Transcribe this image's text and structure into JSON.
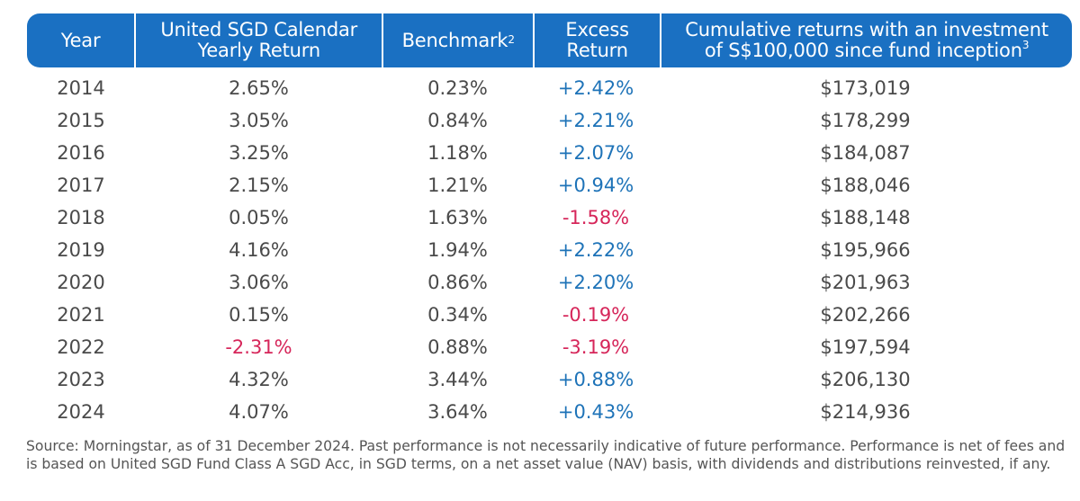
{
  "table": {
    "headers": {
      "year": "Year",
      "yearly_return_line1": "United SGD Calendar",
      "yearly_return_line2": "Yearly Return",
      "benchmark": "Benchmark",
      "benchmark_sup": "2",
      "excess_line1": "Excess",
      "excess_line2": "Return",
      "cumulative_line1": "Cumulative returns with an investment",
      "cumulative_line2": "of S$100,000 since fund inception",
      "cumulative_sup": "3"
    },
    "rows": [
      {
        "year": "2014",
        "fund_return": "2.65%",
        "benchmark": "0.23%",
        "excess": "+2.42%",
        "cumulative": "$173,019"
      },
      {
        "year": "2015",
        "fund_return": "3.05%",
        "benchmark": "0.84%",
        "excess": "+2.21%",
        "cumulative": "$178,299"
      },
      {
        "year": "2016",
        "fund_return": "3.25%",
        "benchmark": "1.18%",
        "excess": "+2.07%",
        "cumulative": "$184,087"
      },
      {
        "year": "2017",
        "fund_return": "2.15%",
        "benchmark": "1.21%",
        "excess": "+0.94%",
        "cumulative": "$188,046"
      },
      {
        "year": "2018",
        "fund_return": "0.05%",
        "benchmark": "1.63%",
        "excess": "-1.58%",
        "cumulative": "$188,148"
      },
      {
        "year": "2019",
        "fund_return": "4.16%",
        "benchmark": "1.94%",
        "excess": "+2.22%",
        "cumulative": "$195,966"
      },
      {
        "year": "2020",
        "fund_return": "3.06%",
        "benchmark": "0.86%",
        "excess": "+2.20%",
        "cumulative": "$201,963"
      },
      {
        "year": "2021",
        "fund_return": "0.15%",
        "benchmark": "0.34%",
        "excess": "-0.19%",
        "cumulative": "$202,266"
      },
      {
        "year": "2022",
        "fund_return": "-2.31%",
        "benchmark": "0.88%",
        "excess": "-3.19%",
        "cumulative": "$197,594"
      },
      {
        "year": "2023",
        "fund_return": "4.32%",
        "benchmark": "3.44%",
        "excess": "+0.88%",
        "cumulative": "$206,130"
      },
      {
        "year": "2024",
        "fund_return": "4.07%",
        "benchmark": "3.64%",
        "excess": "+0.43%",
        "cumulative": "$214,936"
      }
    ]
  },
  "footnote": "Source: Morningstar, as of 31 December 2024. Past performance is not necessarily indicative of future performance. Performance is net of fees and is based on United SGD Fund Class A SGD Acc, in SGD terms, on a net asset value (NAV) basis, with dividends and distributions reinvested, if any.",
  "colors": {
    "header_bg": "#1a70c2",
    "positive": "#1e73b8",
    "negative": "#d6265a",
    "text": "#4a4a4a"
  }
}
